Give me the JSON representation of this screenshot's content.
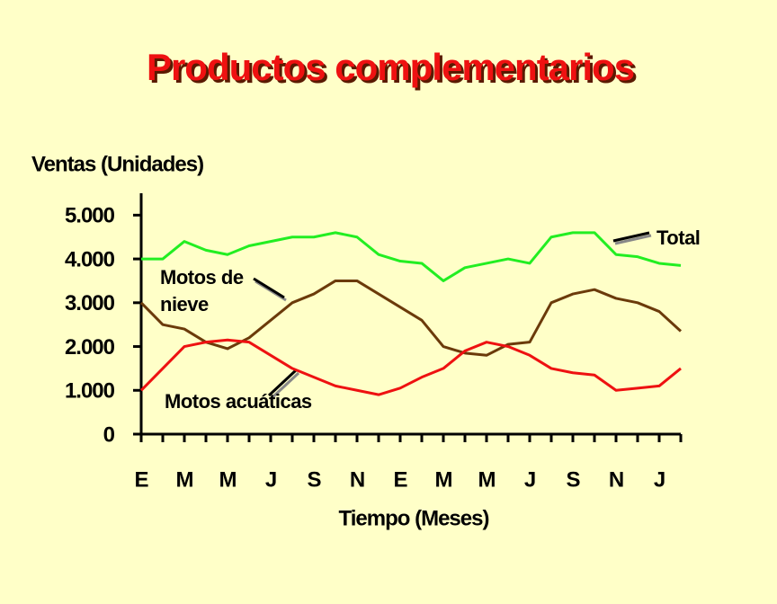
{
  "chart_data": {
    "type": "line",
    "title": "Productos complementarios",
    "y_label": "Ventas (Unidades)",
    "x_label": "Tiempo (Meses)",
    "categories": [
      "E",
      null,
      "M",
      null,
      "M",
      null,
      "J",
      null,
      "S",
      null,
      "N",
      null,
      "E",
      null,
      "M",
      null,
      "M",
      null,
      "J",
      null,
      "S",
      null,
      "N",
      null,
      "J",
      null
    ],
    "ylim": [
      0,
      5500
    ],
    "yticks": [
      0,
      {
        "value": 1000,
        "label": "1.000"
      },
      {
        "value": 2000,
        "label": "2.000"
      },
      {
        "value": 3000,
        "label": "3.000"
      },
      {
        "value": 4000,
        "label": "4.000"
      },
      {
        "value": 5000,
        "label": "5.000"
      }
    ],
    "series": [
      {
        "name": "Total",
        "color": "#22ee22",
        "values": [
          4000,
          4000,
          4400,
          4200,
          4100,
          4300,
          4400,
          4500,
          4500,
          4600,
          4500,
          4100,
          3950,
          3900,
          3500,
          3800,
          3900,
          4000,
          3900,
          4500,
          4600,
          4600,
          4100,
          4050,
          3900,
          3850
        ]
      },
      {
        "name": "Motos de nieve",
        "color": "#6b3a0a",
        "values": [
          3000,
          2500,
          2400,
          2100,
          1950,
          2200,
          2600,
          3000,
          3200,
          3500,
          3500,
          3200,
          2900,
          2600,
          2000,
          1850,
          1800,
          2050,
          2100,
          3000,
          3200,
          3300,
          3100,
          3000,
          2800,
          2350
        ]
      },
      {
        "name": "Motos acuáticas",
        "color": "#ee1111",
        "values": [
          1000,
          1500,
          2000,
          2100,
          2150,
          2100,
          1800,
          1500,
          1300,
          1100,
          1000,
          900,
          1050,
          1300,
          1500,
          1900,
          2100,
          2000,
          1800,
          1500,
          1400,
          1350,
          1000,
          1050,
          1100,
          1500
        ]
      }
    ]
  }
}
